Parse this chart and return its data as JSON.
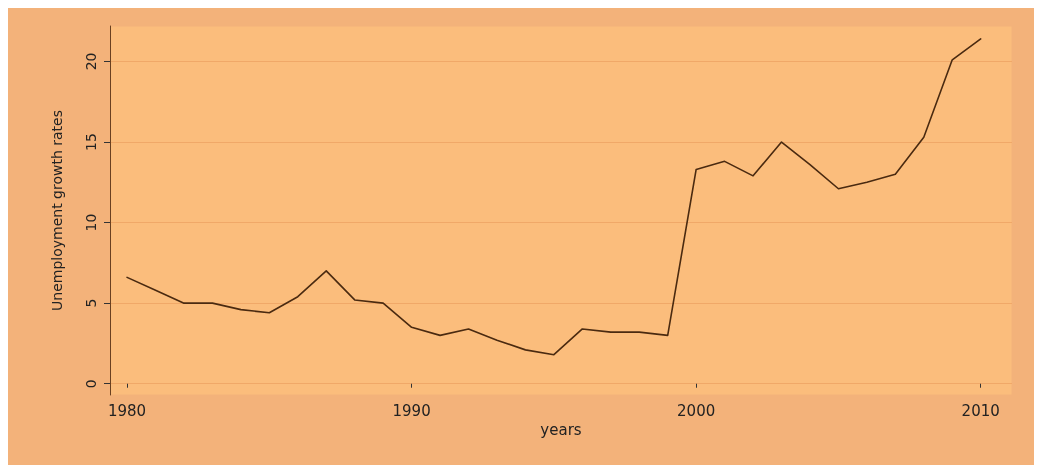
{
  "chart_data": {
    "type": "line",
    "xlabel": "years",
    "ylabel": "Unemployment growth rates",
    "x": [
      1980,
      1981,
      1982,
      1983,
      1984,
      1985,
      1986,
      1987,
      1988,
      1989,
      1990,
      1991,
      1992,
      1993,
      1994,
      1995,
      1996,
      1997,
      1998,
      1999,
      2000,
      2001,
      2002,
      2003,
      2004,
      2005,
      2006,
      2007,
      2008,
      2009,
      2010
    ],
    "series": [
      {
        "color": "#4a2a10",
        "values": [
          6.6,
          5.8,
          5.0,
          5.0,
          4.6,
          4.4,
          5.4,
          7.0,
          5.2,
          5.0,
          3.5,
          3.0,
          3.4,
          2.7,
          2.1,
          1.8,
          3.4,
          3.2,
          3.2,
          3.0,
          13.3,
          13.8,
          12.9,
          15.0,
          13.6,
          12.1,
          12.5,
          13.0,
          15.3,
          20.1,
          21.4
        ]
      }
    ],
    "xlim": [
      1979.4,
      2011.1
    ],
    "xticks": [
      1980,
      1990,
      2000,
      2010
    ],
    "ylim": [
      -0.7,
      22.2
    ],
    "yticks": [
      0,
      5,
      10,
      15,
      20
    ],
    "grid": "y",
    "marker": "none",
    "line_style": "solid"
  }
}
